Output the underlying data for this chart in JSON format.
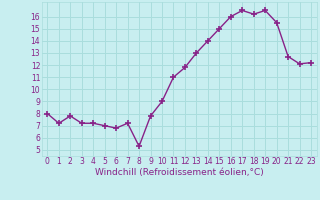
{
  "x": [
    0,
    1,
    2,
    3,
    4,
    5,
    6,
    7,
    8,
    9,
    10,
    11,
    12,
    13,
    14,
    15,
    16,
    17,
    18,
    19,
    20,
    21,
    22,
    23
  ],
  "y": [
    8.0,
    7.2,
    7.8,
    7.2,
    7.2,
    7.0,
    6.8,
    7.2,
    5.3,
    7.8,
    9.0,
    11.0,
    11.8,
    13.0,
    14.0,
    15.0,
    16.0,
    16.5,
    16.2,
    16.5,
    15.5,
    12.7,
    12.1,
    12.2
  ],
  "line_color": "#882288",
  "marker": "+",
  "marker_size": 4,
  "marker_lw": 1.2,
  "bg_color": "#c8eef0",
  "grid_color": "#aadddd",
  "xlabel": "Windchill (Refroidissement éolien,°C)",
  "yticks": [
    5,
    6,
    7,
    8,
    9,
    10,
    11,
    12,
    13,
    14,
    15,
    16
  ],
  "xlim": [
    -0.5,
    23.5
  ],
  "ylim": [
    4.5,
    17.2
  ],
  "xticks": [
    0,
    1,
    2,
    3,
    4,
    5,
    6,
    7,
    8,
    9,
    10,
    11,
    12,
    13,
    14,
    15,
    16,
    17,
    18,
    19,
    20,
    21,
    22,
    23
  ],
  "tick_fontsize": 5.5,
  "xlabel_fontsize": 6.5,
  "label_color": "#882288",
  "linewidth": 1.0
}
